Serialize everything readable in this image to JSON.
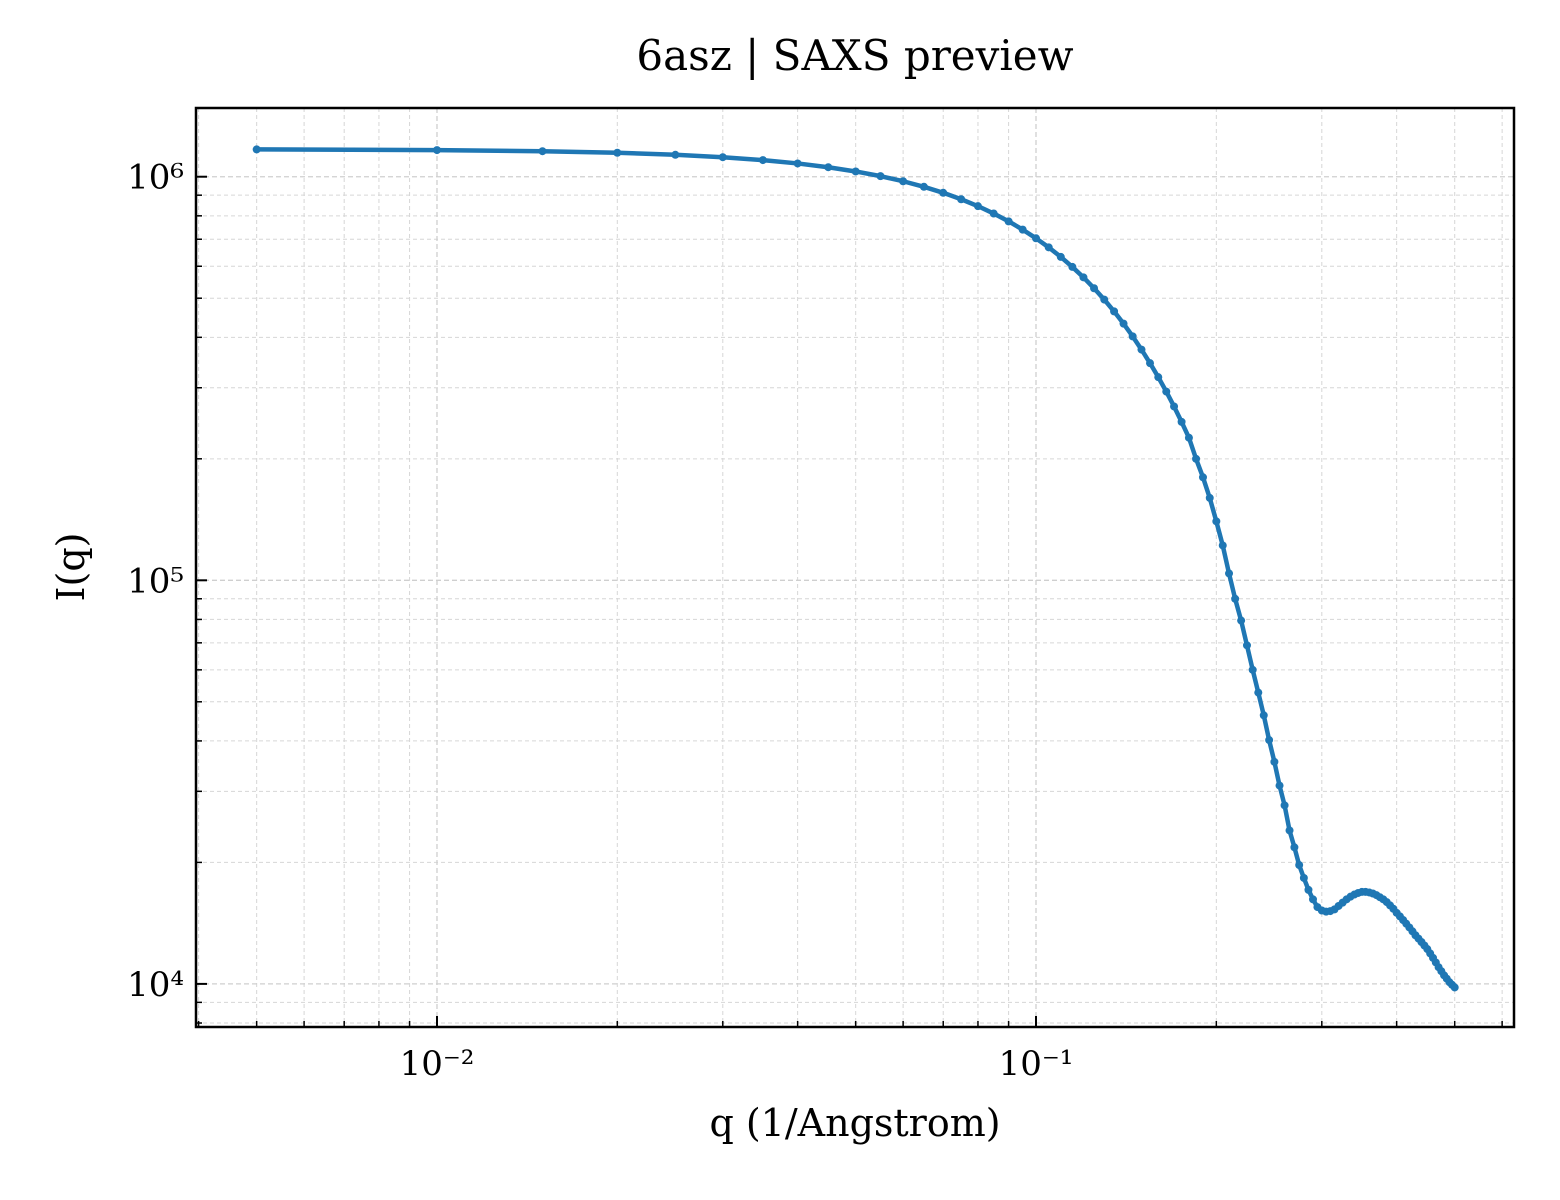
{
  "chart_data": {
    "type": "line",
    "title": "6asz | SAXS preview",
    "x_label": "q (1/Angstrom)",
    "y_label": "I(q)",
    "x_scale": "log",
    "y_scale": "log",
    "grid": true,
    "color": "#1f77b4",
    "xlim": [
      0.00396,
      0.628
    ],
    "ylim": [
      7820,
      1480000
    ],
    "xticks": [
      {
        "value": 0.01,
        "label": "10⁻²"
      },
      {
        "value": 0.1,
        "label": "10⁻¹"
      }
    ],
    "yticks": [
      {
        "value": 10000,
        "label": "10⁴"
      },
      {
        "value": 100000,
        "label": "10⁵"
      },
      {
        "value": 1000000,
        "label": "10⁶"
      }
    ],
    "xminorticks": [
      0.004,
      0.005,
      0.006,
      0.007,
      0.008,
      0.009,
      0.02,
      0.03,
      0.04,
      0.05,
      0.06,
      0.07,
      0.08,
      0.09,
      0.2,
      0.3,
      0.4,
      0.5,
      0.6
    ],
    "yminorticks": [
      8000,
      9000,
      20000,
      30000,
      40000,
      50000,
      60000,
      70000,
      80000,
      90000,
      200000,
      300000,
      400000,
      500000,
      600000,
      700000,
      800000,
      900000
    ],
    "x": [
      0.005,
      0.01,
      0.015,
      0.02,
      0.025,
      0.03,
      0.035,
      0.04,
      0.045,
      0.05,
      0.055,
      0.06,
      0.065,
      0.07,
      0.075,
      0.08,
      0.085,
      0.09,
      0.095,
      0.1,
      0.105,
      0.11,
      0.115,
      0.12,
      0.125,
      0.13,
      0.135,
      0.14,
      0.145,
      0.15,
      0.155,
      0.16,
      0.165,
      0.17,
      0.175,
      0.18,
      0.185,
      0.19,
      0.195,
      0.2,
      0.205,
      0.21,
      0.215,
      0.22,
      0.225,
      0.23,
      0.235,
      0.24,
      0.245,
      0.25,
      0.255,
      0.26,
      0.265,
      0.27,
      0.275,
      0.28,
      0.285,
      0.29,
      0.295,
      0.3,
      0.305,
      0.31,
      0.315,
      0.32,
      0.325,
      0.33,
      0.335,
      0.34,
      0.345,
      0.35,
      0.355,
      0.36,
      0.365,
      0.37,
      0.375,
      0.38,
      0.385,
      0.39,
      0.395,
      0.4,
      0.405,
      0.41,
      0.415,
      0.42,
      0.425,
      0.43,
      0.435,
      0.44,
      0.445,
      0.45,
      0.455,
      0.46,
      0.465,
      0.47,
      0.475,
      0.48,
      0.485,
      0.49,
      0.495,
      0.5
    ],
    "values": [
      1168500,
      1164000,
      1156700,
      1146500,
      1133400,
      1117700,
      1099400,
      1078700,
      1055600,
      1030400,
      1003300,
      974500,
      944100,
      912300,
      879300,
      845400,
      810500,
      775100,
      739500,
      703700,
      668300,
      632900,
      597700,
      563200,
      529200,
      496100,
      463800,
      432500,
      402200,
      373000,
      345200,
      318700,
      293500,
      269600,
      246900,
      225600,
      200000,
      180000,
      160000,
      140000,
      122000,
      104000,
      90000,
      79500,
      69000,
      60000,
      52700,
      46300,
      40200,
      35500,
      31000,
      27700,
      24000,
      21800,
      19700,
      18300,
      17100,
      16200,
      15500,
      15200,
      15100,
      15150,
      15300,
      15600,
      15900,
      16200,
      16450,
      16650,
      16800,
      16900,
      16900,
      16850,
      16750,
      16600,
      16400,
      16200,
      15950,
      15650,
      15350,
      15000,
      14700,
      14400,
      14100,
      13800,
      13500,
      13200,
      12950,
      12700,
      12450,
      12200,
      11900,
      11600,
      11300,
      11000,
      10750,
      10500,
      10300,
      10100,
      9950,
      9800
    ]
  }
}
